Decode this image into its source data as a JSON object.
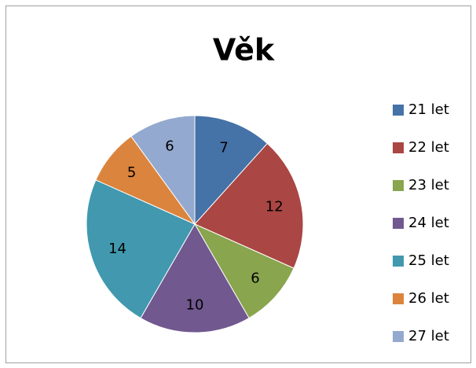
{
  "chart_data": {
    "type": "pie",
    "title": "Věk",
    "categories": [
      "21 let",
      "22 let",
      "23 let",
      "24 let",
      "25 let",
      "26 let",
      "27 let"
    ],
    "values": [
      7,
      12,
      6,
      10,
      14,
      5,
      6
    ],
    "colors": [
      "#4572a7",
      "#aa4643",
      "#89a54e",
      "#71588f",
      "#4198af",
      "#db843d",
      "#93a9cf"
    ],
    "legend": "right"
  }
}
